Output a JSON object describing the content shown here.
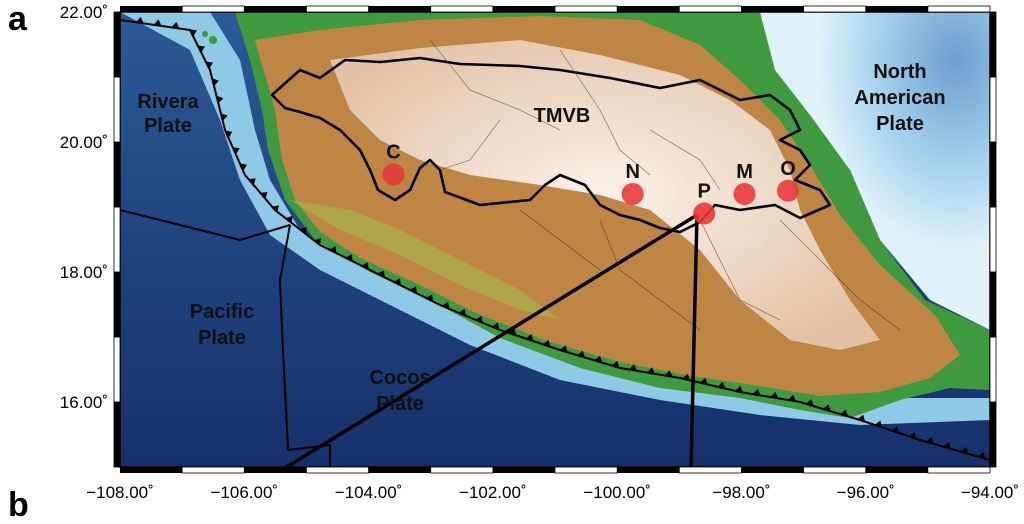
{
  "panel_label": "a",
  "panel_label_next": "b",
  "map": {
    "x_ticks": [
      "−108.00˚",
      "−106.00˚",
      "−104.00˚",
      "−102.00˚",
      "−100.00˚",
      "−98.00˚",
      "−96.00˚",
      "−94.00˚"
    ],
    "y_ticks": [
      "22.00˚",
      "20.00˚",
      "18.00˚",
      "16.00˚"
    ],
    "lon_range": [
      -108,
      -94
    ],
    "lat_range": [
      15,
      22
    ],
    "labels": {
      "rivera_1": "Rivera",
      "rivera_2": "Plate",
      "north_american_1": "North",
      "north_american_2": "American",
      "north_american_3": "Plate",
      "pacific_1": "Pacific",
      "pacific_2": "Plate",
      "cocos_1": "Cocos",
      "cocos_2": "Plate",
      "tmvb": "TMVB"
    },
    "volcanoes": [
      {
        "id": "C",
        "lon": -103.6,
        "lat": 19.5
      },
      {
        "id": "N",
        "lon": -99.75,
        "lat": 19.2
      },
      {
        "id": "P",
        "lon": -98.6,
        "lat": 18.9
      },
      {
        "id": "M",
        "lon": -97.95,
        "lat": 19.2
      },
      {
        "id": "O",
        "lon": -97.25,
        "lat": 19.25
      }
    ],
    "colors": {
      "deep_ocean": "#1c3a6e",
      "shelf": "#cfe8f2",
      "lowland": "#3f9a3f",
      "upland": "#c68445",
      "highland": "#f2e3d8",
      "volcano": "#e83a3a"
    }
  }
}
